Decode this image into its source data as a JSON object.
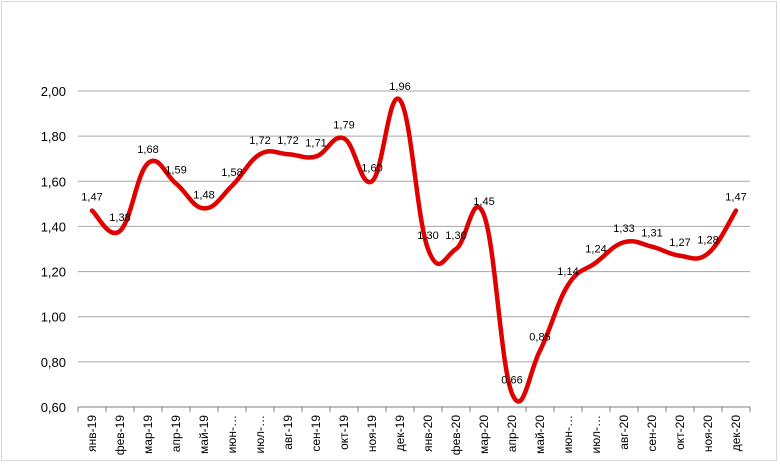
{
  "chart_data": {
    "type": "line",
    "title": "",
    "xlabel": "",
    "ylabel": "",
    "ylim": [
      0.6,
      2.0
    ],
    "yticks": [
      0.6,
      0.8,
      1.0,
      1.2,
      1.4,
      1.6,
      1.8,
      2.0
    ],
    "ytick_labels": [
      "0,60",
      "0,80",
      "1,00",
      "1,20",
      "1,40",
      "1,60",
      "1,80",
      "2,00"
    ],
    "grid": "horizontal",
    "legend": "none",
    "line_color": "#e00000",
    "grid_color": "#a6a6a6",
    "categories": [
      "янв-19",
      "фев-19",
      "мар-19",
      "апр-19",
      "май-19",
      "июн-…",
      "июл-…",
      "авг-19",
      "сен-19",
      "окт-19",
      "ноя-19",
      "дек-19",
      "янв-20",
      "фев-20",
      "мар-20",
      "апр-20",
      "май-20",
      "июн-…",
      "июл-…",
      "авг-20",
      "сен-20",
      "окт-20",
      "ноя-20",
      "дек-20"
    ],
    "series": [
      {
        "values": [
          1.47,
          1.38,
          1.68,
          1.59,
          1.48,
          1.58,
          1.72,
          1.72,
          1.71,
          1.79,
          1.6,
          1.96,
          1.3,
          1.3,
          1.45,
          0.66,
          0.85,
          1.14,
          1.24,
          1.33,
          1.31,
          1.27,
          1.28,
          1.47
        ],
        "labels": [
          "1,47",
          "1,38",
          "1,68",
          "1,59",
          "1,48",
          "1,58",
          "1,72",
          "1,72",
          "1,71",
          "1,79",
          "1,60",
          "1,96",
          "1,30",
          "1,30",
          "1,45",
          "0,66",
          "0,85",
          "1,14",
          "1,24",
          "1,33",
          "1,31",
          "1,27",
          "1,28",
          "1,47"
        ]
      }
    ]
  }
}
